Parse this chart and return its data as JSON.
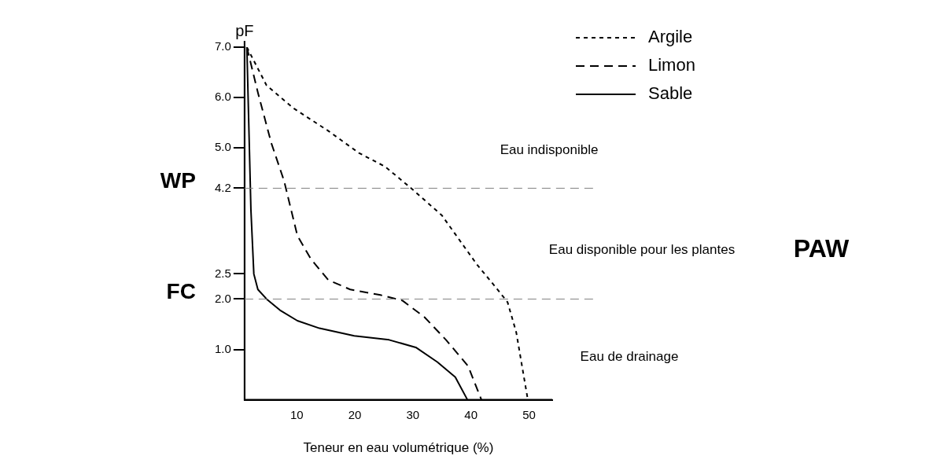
{
  "chart_data": {
    "type": "line",
    "xlabel": "Teneur en eau volumétrique (%)",
    "ylabel": "pF",
    "xlim": [
      1,
      54
    ],
    "xticks": [
      10,
      20,
      30,
      40,
      50
    ],
    "ylim": [
      0,
      7
    ],
    "yticks": [
      {
        "value": 1,
        "label": "1.0"
      },
      {
        "value": 2,
        "label": "2.0"
      },
      2.5,
      4.2,
      {
        "value": 5,
        "label": "5.0"
      },
      {
        "value": 6,
        "label": "6.0"
      },
      {
        "value": 7,
        "label": "7.0"
      }
    ],
    "grid": false,
    "legend": "top right",
    "marker": "none",
    "series": [
      {
        "name": "Argile",
        "color": "#000000",
        "line_style": "dotted",
        "x": [
          1.4,
          4.8,
          9.4,
          15.4,
          20.7,
          25.2,
          29.7,
          35,
          41,
          44,
          46.3,
          47.8,
          48.9,
          49.8
        ],
        "values": [
          7,
          6.24,
          5.79,
          5.34,
          4.9,
          4.63,
          4.2,
          3.66,
          2.69,
          2.27,
          1.94,
          1.34,
          0.6,
          0
        ]
      },
      {
        "name": "Limon",
        "color": "#000000",
        "line_style": "dashed",
        "x": [
          1.4,
          3.3,
          5.6,
          7.8,
          10.1,
          12.4,
          15.4,
          19.2,
          24.4,
          28.2,
          32,
          35.7,
          39.5,
          41.8
        ],
        "values": [
          7,
          6.1,
          5.1,
          4.35,
          3.26,
          2.8,
          2.38,
          2.19,
          2.08,
          1.97,
          1.64,
          1.19,
          0.67,
          0
        ]
      },
      {
        "name": "Sable",
        "color": "#000000",
        "line_style": "solid",
        "x": [
          1.4,
          2.1,
          2.6,
          3.3,
          4.8,
          7.1,
          10.1,
          13.9,
          19.9,
          25.9,
          30.5,
          34.2,
          37.3,
          39.4
        ],
        "values": [
          7,
          3.77,
          2.5,
          2.19,
          2.0,
          1.78,
          1.57,
          1.42,
          1.27,
          1.19,
          1.04,
          0.75,
          0.45,
          0
        ]
      }
    ],
    "ref_lines": [
      {
        "axis": "y",
        "value": 4.2,
        "label": "WP",
        "color": "#808080",
        "line_style": "dashed"
      },
      {
        "axis": "y",
        "value": 2.0,
        "label": "FC",
        "color": "#808080",
        "line_style": "dashed"
      }
    ],
    "annotations": [
      "Eau indisponible",
      "Eau disponible pour les plantes",
      "Eau de drainage",
      "PAW"
    ]
  }
}
